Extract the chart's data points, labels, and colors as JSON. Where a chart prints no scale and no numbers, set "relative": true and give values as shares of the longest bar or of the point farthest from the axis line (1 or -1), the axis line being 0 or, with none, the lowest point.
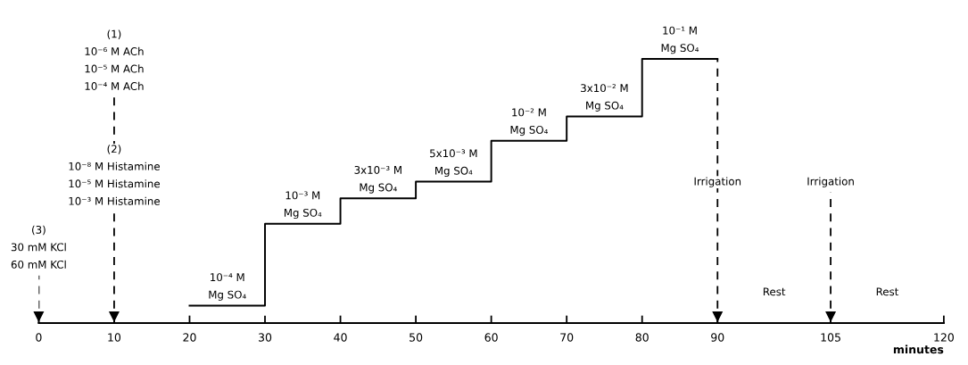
{
  "chart_data": {
    "type": "step",
    "relative": true,
    "xlabel": "minutes",
    "x": [
      20,
      30,
      40,
      50,
      60,
      70,
      80,
      90
    ],
    "series": [
      {
        "color": "#000000",
        "values": [
          0.066,
          0.376,
          0.472,
          0.535,
          0.69,
          0.782,
          1,
          1
        ]
      }
    ],
    "xlim": [
      0,
      120
    ],
    "xticks": [
      0,
      10,
      20,
      30,
      40,
      50,
      60,
      70,
      80,
      90,
      105,
      120
    ],
    "ref_lines": [
      {
        "axis": "x",
        "value": 0,
        "line_style": "dashed",
        "color": "#000000"
      },
      {
        "axis": "x",
        "value": 10,
        "line_style": "dashed",
        "color": "#000000"
      },
      {
        "axis": "x",
        "value": 90,
        "line_style": "dashed",
        "color": "#000000"
      },
      {
        "axis": "x",
        "value": 105,
        "line_style": "dashed",
        "color": "#000000"
      }
    ],
    "annotations": [
      {
        "text": "(3)\n30 mM KCl\n60 mM KCl",
        "x": 0,
        "y": 0.18
      },
      {
        "text": "(2)\n10⁻⁸ M Histamine\n10⁻⁵ M Histamine\n10⁻³ M Histamine",
        "x": 10,
        "y": 0.42
      },
      {
        "text": "(1)\n10⁻⁶ M ACh\n10⁻⁵ M ACh\n10⁻⁴ M ACh",
        "x": 10,
        "y": 0.855
      },
      {
        "text": "10⁻⁴ M\nMg SO₄",
        "x": 25,
        "y": 0.066
      },
      {
        "text": "10⁻³ M\nMg SO₄",
        "x": 35,
        "y": 0.376
      },
      {
        "text": "3x10⁻³ M\nMg SO₄",
        "x": 45,
        "y": 0.472
      },
      {
        "text": "5x10⁻³ M\nMg SO₄",
        "x": 55,
        "y": 0.535
      },
      {
        "text": "10⁻² M\nMg SO₄",
        "x": 65,
        "y": 0.69
      },
      {
        "text": "3x10⁻² M\nMg SO₄",
        "x": 75,
        "y": 0.782
      },
      {
        "text": "10⁻¹ M\nMg SO₄",
        "x": 85,
        "y": 1
      },
      {
        "text": "Irrigation",
        "x": 90,
        "y": 0.495
      },
      {
        "text": "Irrigation",
        "x": 105,
        "y": 0.495
      },
      "Rest",
      "Rest"
    ]
  }
}
